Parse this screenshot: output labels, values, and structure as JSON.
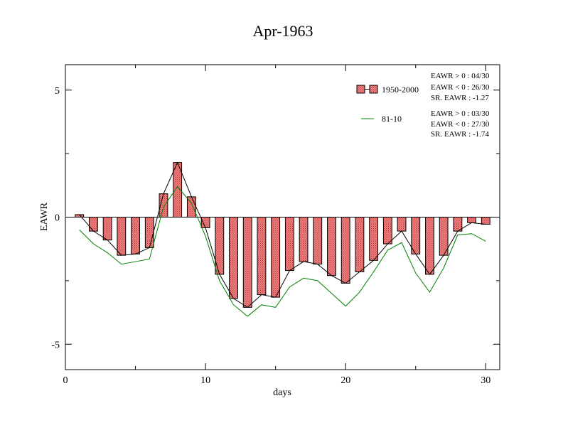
{
  "chart_data": {
    "type": "bar",
    "title": "Apr-1963",
    "xlabel": "days",
    "ylabel": "EAWR",
    "xlim": [
      0,
      31
    ],
    "ylim": [
      -6,
      6
    ],
    "xticks": [
      0,
      10,
      20,
      30
    ],
    "yticks": [
      -5,
      0,
      5
    ],
    "x": [
      1,
      2,
      3,
      4,
      5,
      6,
      7,
      8,
      9,
      10,
      11,
      12,
      13,
      14,
      15,
      16,
      17,
      18,
      19,
      20,
      21,
      22,
      23,
      24,
      25,
      26,
      27,
      28,
      29,
      30
    ],
    "series": [
      {
        "name": "1950-2000",
        "kind": "bar",
        "color": "#f08080",
        "values": [
          0.1,
          -0.55,
          -0.9,
          -1.5,
          -1.45,
          -1.2,
          0.92,
          2.15,
          0.8,
          -0.42,
          -2.25,
          -3.2,
          -3.55,
          -3.05,
          -3.15,
          -2.1,
          -1.75,
          -1.85,
          -2.3,
          -2.6,
          -2.15,
          -1.7,
          -1.05,
          -0.55,
          -1.45,
          -2.25,
          -1.5,
          -0.55,
          -0.22,
          -0.28
        ]
      },
      {
        "name": "81-10",
        "kind": "line",
        "color": "#008000",
        "values": [
          -0.5,
          -1.05,
          -1.4,
          -1.85,
          -1.75,
          -1.65,
          0.4,
          1.2,
          0.55,
          -0.75,
          -2.5,
          -3.45,
          -3.9,
          -3.45,
          -3.55,
          -2.75,
          -2.4,
          -2.5,
          -3.0,
          -3.5,
          -2.95,
          -2.15,
          -1.3,
          -1.0,
          -2.2,
          -2.95,
          -2.0,
          -0.7,
          -0.65,
          -0.95
        ]
      }
    ],
    "legend": {
      "placement": "top-right",
      "entries": [
        {
          "label": "1950-2000",
          "stats": [
            "EAWR > 0 : 04/30",
            "EAWR < 0 : 26/30",
            "SR. EAWR : -1.27"
          ]
        },
        {
          "label": "81-10",
          "stats": [
            "EAWR > 0 : 03/30",
            "EAWR < 0 : 27/30",
            "SR. EAWR : -1.74"
          ]
        }
      ]
    }
  }
}
